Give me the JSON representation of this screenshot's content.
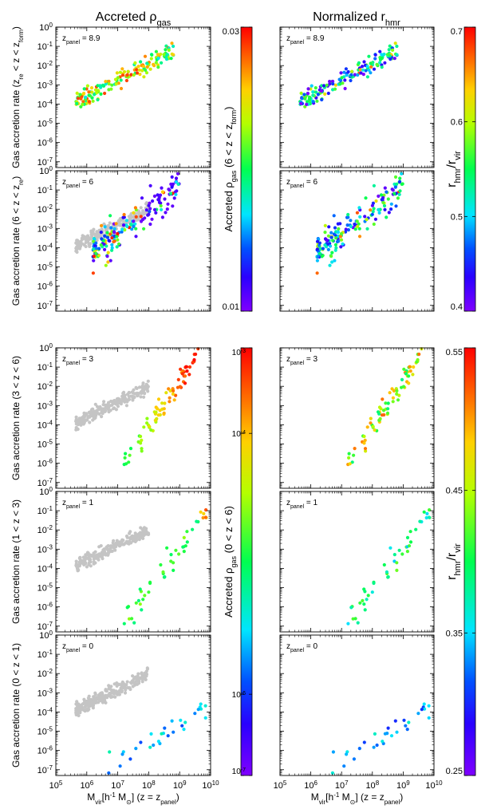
{
  "figure": {
    "columns": [
      {
        "title": "Accreted ρ",
        "title_sub": "gas"
      },
      {
        "title": "Normalized r",
        "title_sub": "hmr"
      }
    ],
    "xlabel": {
      "main": "M",
      "sub1": "vir",
      "mid": "[h",
      "sup": "-1",
      "mid2": " M",
      "sub2": "⊙",
      "tail": "] (z = z",
      "sub3": "panel",
      "end": ")"
    },
    "x_ticks": [
      "10^5",
      "10^6",
      "10^7",
      "10^8",
      "10^9",
      "10^10"
    ],
    "y_ticks": [
      "10^0",
      "10^-1",
      "10^-2",
      "10^-3",
      "10^-4",
      "10^-5",
      "10^-6",
      "10^-7"
    ]
  },
  "rows": [
    {
      "ylabel": "Gas accretion rate (z",
      "ylabel_parts": [
        [
          "Gas accretion rate (z",
          ""
        ],
        [
          "re",
          "sub"
        ],
        [
          " < z < z",
          ""
        ],
        [
          "form",
          "sub"
        ],
        [
          ")",
          ""
        ]
      ],
      "zpanel": "8.9"
    },
    {
      "ylabel_parts": [
        [
          "Gas accretion rate (6 < z < z",
          ""
        ],
        [
          "re",
          "sub"
        ],
        [
          ")",
          ""
        ]
      ],
      "zpanel": "6"
    },
    {
      "ylabel_parts": [
        [
          "Gas accretion rate (3 < z < 6)",
          ""
        ]
      ],
      "zpanel": "3"
    },
    {
      "ylabel_parts": [
        [
          "Gas accretion rate (1 < z < 3)",
          ""
        ]
      ],
      "zpanel": "1"
    },
    {
      "ylabel_parts": [
        [
          "Gas accretion rate (0 < z < 1)",
          ""
        ]
      ],
      "zpanel": "0"
    }
  ],
  "zpanel_label": {
    "main": "z",
    "sub": "panel",
    "eq": " = "
  },
  "colorbars": [
    {
      "id": "rho-top",
      "scale": "linear",
      "ticks": [
        "0.03",
        "0.01"
      ],
      "label_parts": [
        [
          "Accreted ρ",
          ""
        ],
        [
          "gas",
          "sub"
        ],
        [
          " (6 < z < z",
          ""
        ],
        [
          "form",
          "sub"
        ],
        [
          ")",
          ""
        ]
      ]
    },
    {
      "id": "rho-bottom",
      "scale": "log",
      "ticks": [
        "10^-3",
        "10^-4",
        "10^-6",
        "10^-7"
      ],
      "label_parts": [
        [
          "Accreted ρ",
          ""
        ],
        [
          "gas",
          "sub"
        ],
        [
          " (0 < z < 6)",
          ""
        ]
      ]
    },
    {
      "id": "r-top",
      "scale": "linear",
      "ticks": [
        "0.7",
        "0.6",
        "0.5",
        "0.4"
      ],
      "label_parts": [
        [
          "r",
          ""
        ],
        [
          "hmr",
          "sub"
        ],
        [
          "/r",
          ""
        ],
        [
          "vir",
          "sub"
        ]
      ]
    },
    {
      "id": "r-bottom",
      "scale": "linear",
      "ticks": [
        "0.55",
        "0.45",
        "0.35",
        "0.25"
      ],
      "label_parts": [
        [
          "r",
          ""
        ],
        [
          "hmr",
          "sub"
        ],
        [
          "/r",
          ""
        ],
        [
          "vir",
          "sub"
        ]
      ]
    }
  ],
  "colors": {
    "gray": "#c4c4c4",
    "axis": "#000000",
    "background": "#ffffff"
  },
  "chart_data": {
    "type": "scatter",
    "xscale": "log",
    "yscale": "log",
    "xlim_log10": [
      5,
      10
    ],
    "ylim_log10": [
      -7.3,
      0
    ],
    "colormap": "rainbow (violet-blue-cyan-green-yellow-orange-red)",
    "gray_reference": {
      "log_mass_range": [
        5.65,
        8.0
      ],
      "log_rate_at_min": -3.9,
      "log_rate_at_max": -2.0,
      "scatter_dex": 0.35,
      "count": 220,
      "shown_in": [
        "row2",
        "row3",
        "row4",
        "row5 left column"
      ]
    },
    "panels": [
      {
        "row": 1,
        "zpanel": 8.9,
        "log_mass_range": [
          5.65,
          8.8
        ],
        "log_rate_line": [
          -3.9,
          -1.2
        ],
        "color_low_frac": 0.55,
        "color_high_frac": 0.9,
        "n": 160
      },
      {
        "row": 2,
        "zpanel": 6,
        "log_mass_range": [
          6.2,
          9.0
        ],
        "log_rate_line": [
          -4.3,
          -0.8
        ],
        "rho_note": "many violet (low density) points at high mass",
        "n": 170
      },
      {
        "row": 3,
        "zpanel": 3,
        "log_mass_range": [
          7.2,
          9.6
        ],
        "log_rate_line": [
          -6.0,
          -0.3
        ],
        "rho_note": "green at low mass to red at high mass",
        "n": 80
      },
      {
        "row": 4,
        "zpanel": 1,
        "log_mass_range": [
          7.2,
          9.9
        ],
        "log_rate_line": [
          -6.8,
          -1.0
        ],
        "rho_note": "mostly green",
        "n": 45
      },
      {
        "row": 5,
        "zpanel": 0,
        "log_mass_range": [
          6.7,
          9.9
        ],
        "log_rate_line": [
          -6.9,
          -3.8
        ],
        "rho_note": "cyan / blue",
        "n": 30
      }
    ]
  }
}
